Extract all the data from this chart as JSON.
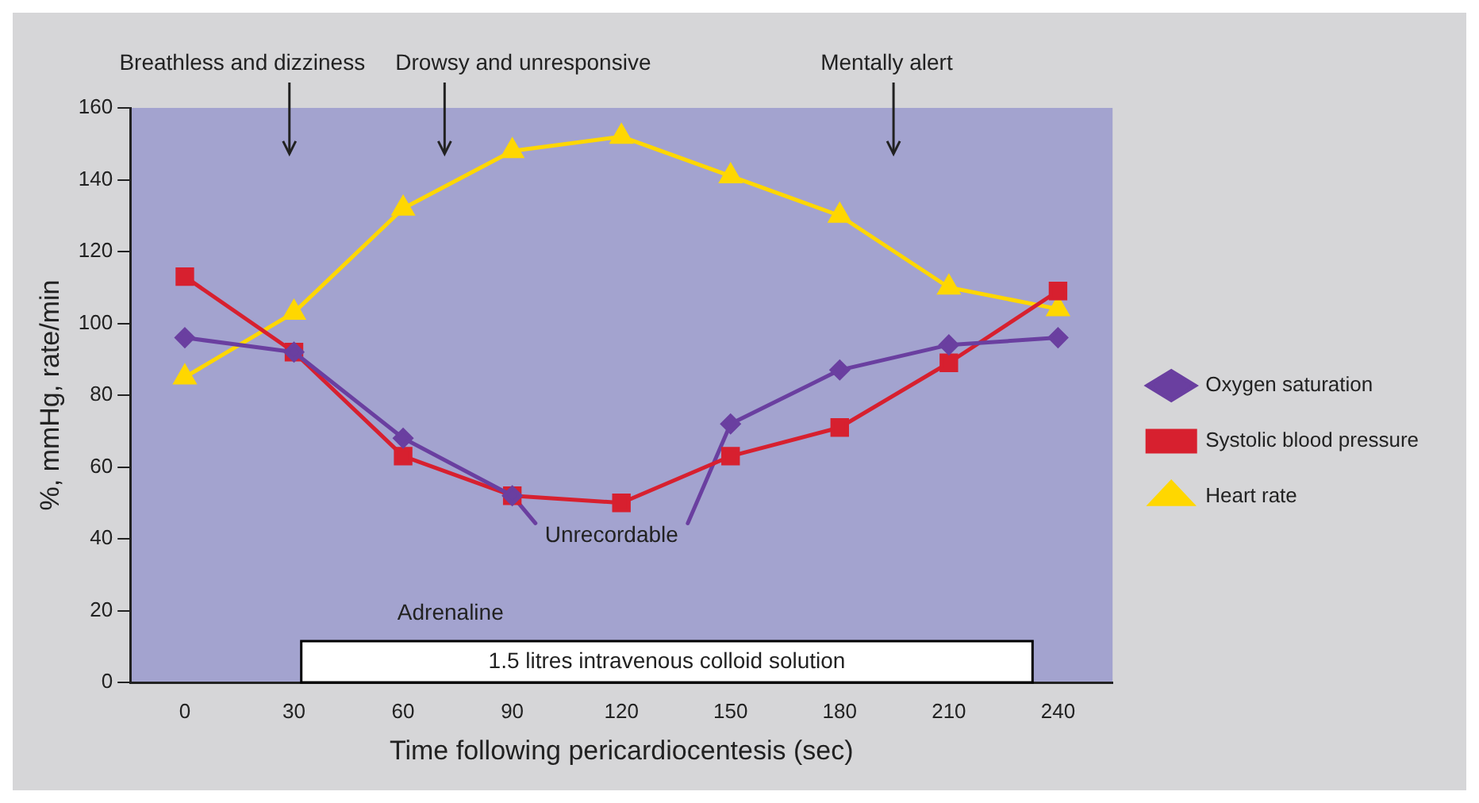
{
  "chart_data": {
    "type": "line",
    "xlabel": "Time following pericardiocentesis (sec)",
    "ylabel": "%, mmHg, rate/min",
    "x": [
      0,
      30,
      60,
      90,
      120,
      150,
      180,
      210,
      240
    ],
    "xlim": [
      -15,
      255
    ],
    "xticks": [
      0,
      30,
      60,
      90,
      120,
      150,
      180,
      210,
      240
    ],
    "ylim": [
      0,
      160
    ],
    "yticks": [
      0,
      20,
      40,
      60,
      80,
      100,
      120,
      140,
      160
    ],
    "series": [
      {
        "name": "Oxygen saturation",
        "color": "#6a3fa0",
        "marker": "diamond",
        "values": [
          96,
          92,
          68,
          52,
          null,
          72,
          87,
          94,
          96
        ]
      },
      {
        "name": "Systolic blood pressure",
        "color": "#d7202f",
        "marker": "square",
        "values": [
          113,
          92,
          63,
          52,
          50,
          63,
          71,
          89,
          109
        ]
      },
      {
        "name": "Heart rate",
        "color": "#ffd700",
        "marker": "triangle",
        "values": [
          85,
          103,
          132,
          148,
          152,
          141,
          130,
          110,
          104
        ]
      }
    ],
    "annotations": [
      "Breathless and dizziness",
      "Drowsy and unresponsive",
      "Mentally alert",
      {
        "text": "Unrecordable",
        "x": 90,
        "y": 52
      },
      "Adrenaline"
    ],
    "bands": [
      {
        "axis": "x",
        "from": 32,
        "to": 233,
        "label": "1.5 litres intravenous colloid solution",
        "color": "#ffffff"
      }
    ],
    "legend": "right",
    "grid": false
  }
}
